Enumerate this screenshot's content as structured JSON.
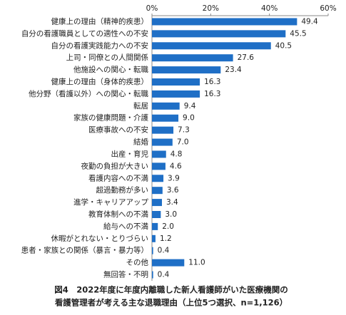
{
  "chart_data": {
    "type": "bar",
    "orientation": "horizontal",
    "title": [
      "図4　2022年度に年度内離職した新人看護師がいた医療機関の",
      "看護管理者が考える主な退職理由（上位5つ選択、n=1,126）"
    ],
    "categories": [
      "健康上の理由（精神的疾患）",
      "自分の看護職員としての適性への不安",
      "自分の看護実践能力への不安",
      "上司・同僚との人間関係",
      "他施設への関心・転職",
      "健康上の理由（身体的疾患）",
      "他分野（看護以外）への関心・転職",
      "転居",
      "家族の健康問題・介護",
      "医療事故への不安",
      "結婚",
      "出産・育児",
      "夜勤の負担が大きい",
      "看護内容への不満",
      "超過勤務が多い",
      "進学・キャリアアップ",
      "教育体制への不満",
      "給与への不満",
      "休暇がとれない・とりづらい",
      "患者・家族との関係（暴言・暴力等）",
      "その他",
      "無回答・不明"
    ],
    "values": [
      49.4,
      45.5,
      40.5,
      27.6,
      23.4,
      16.3,
      16.3,
      9.4,
      9,
      7.3,
      7,
      4.8,
      4.6,
      3.9,
      3.6,
      3.4,
      3,
      2,
      1.2,
      0.4,
      11,
      0.4
    ],
    "value_labels": [
      "49.4",
      "45.5",
      "40.5",
      "27.6",
      "23.4",
      "16.3",
      "16.3",
      "9.4",
      "9.0",
      "7.3",
      "7.0",
      "4.8",
      "4.6",
      "3.9",
      "3.6",
      "3.4",
      "3.0",
      "2.0",
      "1.2",
      "0.4",
      "11.0",
      "0.4"
    ],
    "color": "#1f6fc6",
    "xlim": [
      0,
      60
    ],
    "xticks": [
      {
        "value": 0,
        "label": "0%"
      },
      {
        "value": 20,
        "label": "20%"
      },
      {
        "value": 40,
        "label": "40%"
      },
      {
        "value": 60,
        "label": "60%"
      }
    ]
  }
}
